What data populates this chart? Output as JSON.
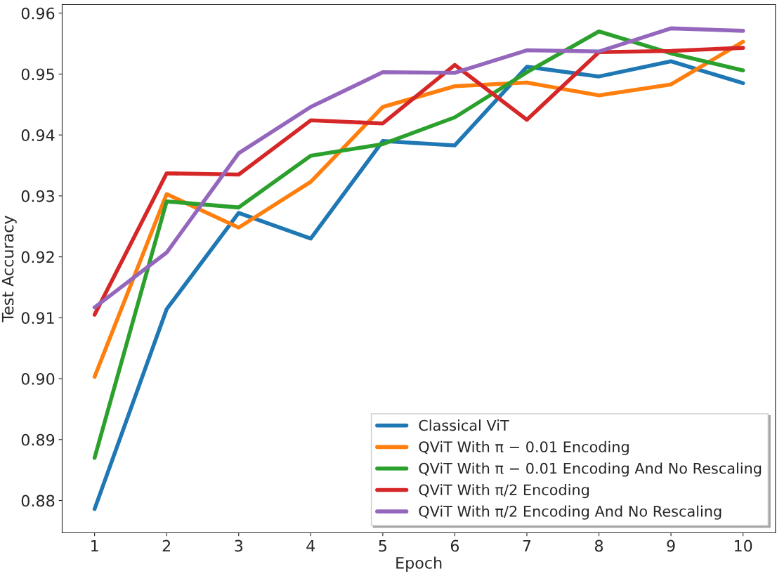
{
  "chart_data": {
    "type": "line",
    "xlabel": "Epoch",
    "ylabel": "Test Accuracy",
    "x": [
      1,
      2,
      3,
      4,
      5,
      6,
      7,
      8,
      9,
      10
    ],
    "series": [
      {
        "name": "Classical ViT",
        "color": "#1f77b4",
        "values": [
          0.8786,
          0.9114,
          0.9272,
          0.923,
          0.939,
          0.9383,
          0.9512,
          0.9496,
          0.9521,
          0.9485
        ]
      },
      {
        "name": "QViT With π − 0.01 Encoding",
        "color": "#ff7f0e",
        "values": [
          0.9003,
          0.9303,
          0.9248,
          0.9323,
          0.9446,
          0.948,
          0.9486,
          0.9465,
          0.9483,
          0.9553
        ]
      },
      {
        "name": "QViT With π − 0.01 Encoding And No Rescaling",
        "color": "#2ca02c",
        "values": [
          0.887,
          0.9291,
          0.9281,
          0.9366,
          0.9385,
          0.9429,
          0.9503,
          0.957,
          0.9534,
          0.9506
        ]
      },
      {
        "name": "QViT With π/2 Encoding",
        "color": "#d62728",
        "values": [
          0.9105,
          0.9337,
          0.9335,
          0.9424,
          0.9419,
          0.9515,
          0.9425,
          0.9536,
          0.9538,
          0.9543
        ]
      },
      {
        "name": "QViT With π/2 Encoding And No Rescaling",
        "color": "#9467bd",
        "values": [
          0.9117,
          0.9207,
          0.937,
          0.9446,
          0.9503,
          0.9502,
          0.9539,
          0.9537,
          0.9575,
          0.9571
        ]
      }
    ],
    "xlim": [
      0.55,
      10.45
    ],
    "xticks": [
      1,
      2,
      3,
      4,
      5,
      6,
      7,
      8,
      9,
      10
    ],
    "ylim": [
      0.8747,
      0.9614
    ],
    "yticks": [
      {
        "value": 0.88,
        "label": "0.88"
      },
      {
        "value": 0.89,
        "label": "0.89"
      },
      {
        "value": 0.9,
        "label": "0.90"
      },
      {
        "value": 0.91,
        "label": "0.91"
      },
      {
        "value": 0.92,
        "label": "0.92"
      },
      {
        "value": 0.93,
        "label": "0.93"
      },
      {
        "value": 0.94,
        "label": "0.94"
      },
      {
        "value": 0.95,
        "label": "0.95"
      },
      {
        "value": 0.96,
        "label": "0.96"
      }
    ],
    "grid": false,
    "legend": "bottom right",
    "marker": "none",
    "line_style": "solid"
  }
}
